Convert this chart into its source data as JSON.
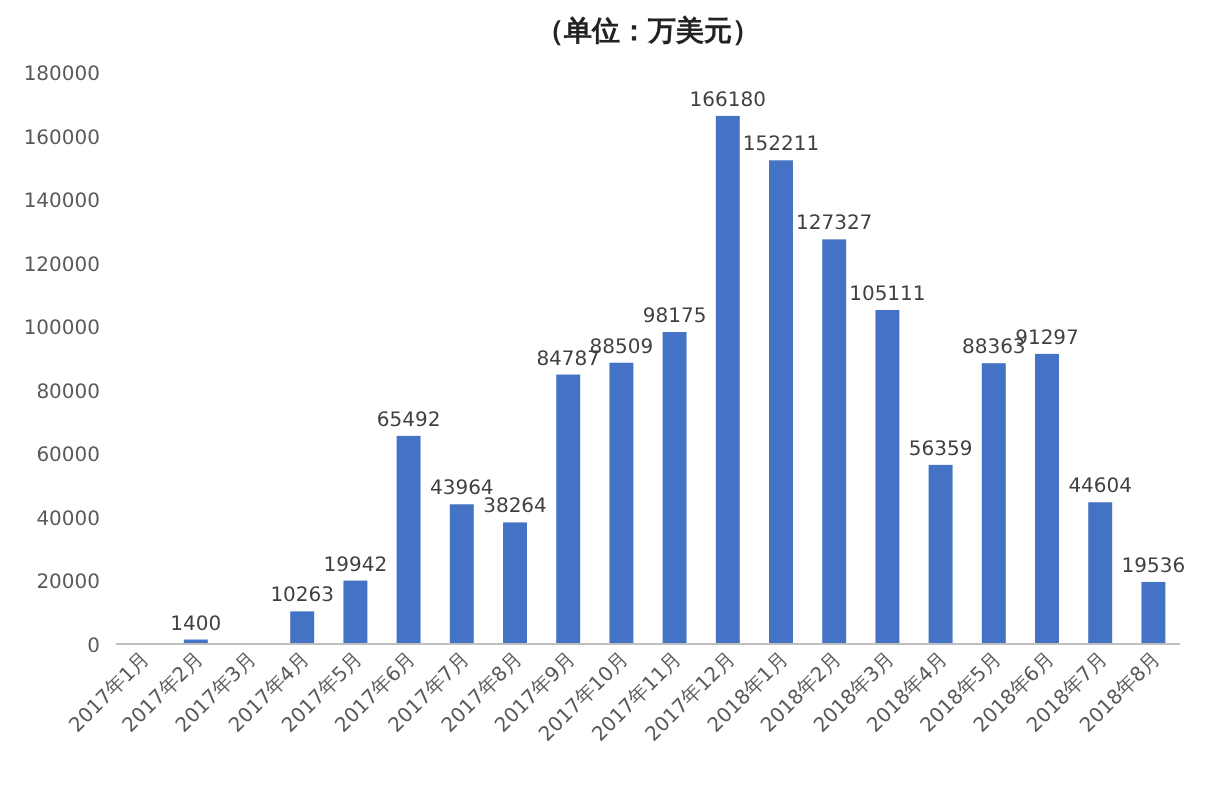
{
  "chart_data": {
    "type": "bar",
    "title": "（单位：万美元）",
    "categories": [
      "2017年1月",
      "2017年2月",
      "2017年3月",
      "2017年4月",
      "2017年5月",
      "2017年6月",
      "2017年7月",
      "2017年8月",
      "2017年9月",
      "2017年10月",
      "2017年11月",
      "2017年12月",
      "2018年1月",
      "2018年2月",
      "2018年3月",
      "2018年4月",
      "2018年5月",
      "2018年6月",
      "2018年7月",
      "2018年8月"
    ],
    "values": [
      null,
      1400,
      null,
      10263,
      19942,
      65492,
      43964,
      38264,
      84787,
      88509,
      98175,
      166180,
      152211,
      127327,
      105111,
      56359,
      88363,
      91297,
      44604,
      19536
    ],
    "color": "#4472c4",
    "ylim": [
      0,
      180000
    ],
    "yticks": [
      0,
      20000,
      40000,
      60000,
      80000,
      100000,
      120000,
      140000,
      160000,
      180000
    ],
    "data_labels": true
  }
}
